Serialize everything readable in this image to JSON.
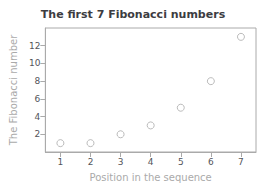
{
  "chart_data": {
    "type": "scatter",
    "title": "The first 7 Fibonacci numbers",
    "xlabel": "Position in the sequence",
    "ylabel": "The Fibonacci number",
    "x": [
      1,
      2,
      3,
      4,
      5,
      6,
      7
    ],
    "values": [
      1,
      1,
      2,
      3,
      5,
      8,
      13
    ],
    "xlim": [
      0.5,
      7.5
    ],
    "ylim": [
      0,
      14
    ],
    "xticks": [
      1,
      2,
      3,
      4,
      5,
      6,
      7
    ],
    "yticks": [
      2,
      4,
      6,
      8,
      10,
      12
    ],
    "marker": "circle",
    "color": "#aaaaaa",
    "grid": false
  }
}
